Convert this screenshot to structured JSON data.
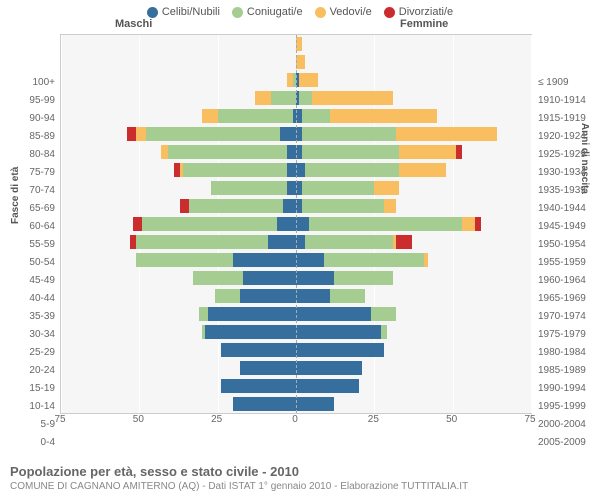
{
  "legend": [
    {
      "label": "Celibi/Nubili",
      "color": "#366f9d"
    },
    {
      "label": "Coniugati/e",
      "color": "#a5cd91"
    },
    {
      "label": "Vedovi/e",
      "color": "#f9be5f"
    },
    {
      "label": "Divorziati/e",
      "color": "#cb2d2e"
    }
  ],
  "header_left": "Maschi",
  "header_right": "Femmine",
  "axis_left_title": "Fasce di età",
  "axis_right_title": "Anni di nascita",
  "x_ticks": [
    75,
    50,
    25,
    0,
    25,
    50,
    75
  ],
  "x_max": 75,
  "plot_bg": "#f6f6f6",
  "grid_color": "#ffffff",
  "rows": [
    {
      "age": "100+",
      "birth": "≤ 1909",
      "m": [
        0,
        0,
        0,
        0
      ],
      "f": [
        0,
        0,
        2,
        0
      ]
    },
    {
      "age": "95-99",
      "birth": "1910-1914",
      "m": [
        0,
        0,
        0,
        0
      ],
      "f": [
        0,
        0,
        3,
        0
      ]
    },
    {
      "age": "90-94",
      "birth": "1915-1919",
      "m": [
        0,
        1,
        2,
        0
      ],
      "f": [
        1,
        0,
        6,
        0
      ]
    },
    {
      "age": "85-89",
      "birth": "1920-1924",
      "m": [
        0,
        8,
        5,
        0
      ],
      "f": [
        1,
        4,
        26,
        0
      ]
    },
    {
      "age": "80-84",
      "birth": "1925-1929",
      "m": [
        1,
        24,
        5,
        0
      ],
      "f": [
        2,
        9,
        34,
        0
      ]
    },
    {
      "age": "75-79",
      "birth": "1930-1934",
      "m": [
        5,
        43,
        3,
        3
      ],
      "f": [
        2,
        30,
        32,
        0
      ]
    },
    {
      "age": "70-74",
      "birth": "1935-1939",
      "m": [
        3,
        38,
        2,
        0
      ],
      "f": [
        2,
        31,
        18,
        2
      ]
    },
    {
      "age": "65-69",
      "birth": "1940-1944",
      "m": [
        3,
        33,
        1,
        2
      ],
      "f": [
        3,
        30,
        15,
        0
      ]
    },
    {
      "age": "60-64",
      "birth": "1945-1949",
      "m": [
        3,
        24,
        0,
        0
      ],
      "f": [
        2,
        23,
        8,
        0
      ]
    },
    {
      "age": "55-59",
      "birth": "1950-1954",
      "m": [
        4,
        30,
        0,
        3
      ],
      "f": [
        2,
        26,
        4,
        0
      ]
    },
    {
      "age": "50-54",
      "birth": "1955-1959",
      "m": [
        6,
        43,
        0,
        3
      ],
      "f": [
        4,
        49,
        4,
        2
      ]
    },
    {
      "age": "45-49",
      "birth": "1960-1964",
      "m": [
        9,
        42,
        0,
        2
      ],
      "f": [
        3,
        28,
        1,
        5
      ]
    },
    {
      "age": "40-44",
      "birth": "1965-1969",
      "m": [
        20,
        31,
        0,
        0
      ],
      "f": [
        9,
        32,
        1,
        0
      ]
    },
    {
      "age": "35-39",
      "birth": "1970-1974",
      "m": [
        17,
        16,
        0,
        0
      ],
      "f": [
        12,
        19,
        0,
        0
      ]
    },
    {
      "age": "30-34",
      "birth": "1975-1979",
      "m": [
        18,
        8,
        0,
        0
      ],
      "f": [
        11,
        11,
        0,
        0
      ]
    },
    {
      "age": "25-29",
      "birth": "1980-1984",
      "m": [
        28,
        3,
        0,
        0
      ],
      "f": [
        24,
        8,
        0,
        0
      ]
    },
    {
      "age": "20-24",
      "birth": "1985-1989",
      "m": [
        29,
        1,
        0,
        0
      ],
      "f": [
        27,
        2,
        0,
        0
      ]
    },
    {
      "age": "15-19",
      "birth": "1990-1994",
      "m": [
        24,
        0,
        0,
        0
      ],
      "f": [
        28,
        0,
        0,
        0
      ]
    },
    {
      "age": "10-14",
      "birth": "1995-1999",
      "m": [
        18,
        0,
        0,
        0
      ],
      "f": [
        21,
        0,
        0,
        0
      ]
    },
    {
      "age": "5-9",
      "birth": "2000-2004",
      "m": [
        24,
        0,
        0,
        0
      ],
      "f": [
        20,
        0,
        0,
        0
      ]
    },
    {
      "age": "0-4",
      "birth": "2005-2009",
      "m": [
        20,
        0,
        0,
        0
      ],
      "f": [
        12,
        0,
        0,
        0
      ]
    }
  ],
  "title": "Popolazione per età, sesso e stato civile - 2010",
  "subtitle": "COMUNE DI CAGNANO AMITERNO (AQ) - Dati ISTAT 1° gennaio 2010 - Elaborazione TUTTITALIA.IT"
}
